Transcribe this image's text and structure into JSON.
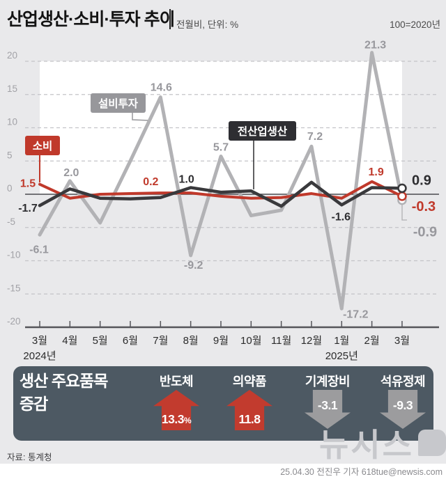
{
  "header": {
    "title": "산업생산·소비·투자 추이",
    "subtitle": "전월비, 단위: %",
    "base_note": "100=2020년"
  },
  "chart_data": {
    "type": "line",
    "title": "산업생산·소비·투자 추이",
    "unit_note": "전월비, 단위: %",
    "ylim": [
      -20,
      20
    ],
    "yticks": [
      20,
      15,
      10,
      5,
      0,
      -5,
      -10,
      -15,
      -20
    ],
    "grid": true,
    "categories": [
      "3월",
      "4월",
      "5월",
      "6월",
      "7월",
      "8월",
      "9월",
      "10월",
      "11월",
      "12월",
      "1월",
      "2월",
      "3월"
    ],
    "year_labels": [
      {
        "index": 0,
        "text": "2024년"
      },
      {
        "index": 10,
        "text": "2025년"
      }
    ],
    "series": [
      {
        "name": "설비투자",
        "color": "#b2b2b5",
        "label_color": "#98989d",
        "values": [
          -6.1,
          2.0,
          -4.3,
          5.0,
          14.6,
          -9.2,
          5.7,
          -3.2,
          -2.4,
          7.2,
          -17.2,
          21.3,
          -0.9
        ],
        "point_labels": [
          {
            "i": 0,
            "t": "-6.1",
            "dx": -1,
            "dy": 26
          },
          {
            "i": 1,
            "t": "2.0",
            "dx": 2,
            "dy": -7
          },
          {
            "i": 4,
            "t": "14.6",
            "dx": 1,
            "dy": -9
          },
          {
            "i": 5,
            "t": "-9.2",
            "dx": 4,
            "dy": 19
          },
          {
            "i": 6,
            "t": "5.7",
            "dx": 0,
            "dy": -8
          },
          {
            "i": 9,
            "t": "7.2",
            "dx": 5,
            "dy": -9
          },
          {
            "i": 10,
            "t": "-17.2",
            "dx": 20,
            "dy": 13
          },
          {
            "i": 11,
            "t": "21.3",
            "dx": 5,
            "dy": -6
          },
          {
            "i": 12,
            "t": "-0.9",
            "dx": 33,
            "dy": 52,
            "big": true
          }
        ]
      },
      {
        "name": "소비",
        "color": "#c0392b",
        "label_color": "#c0392b",
        "values": [
          1.5,
          -0.6,
          0.0,
          0.1,
          0.2,
          0.2,
          -0.3,
          -0.6,
          -0.5,
          0.1,
          -0.6,
          1.9,
          -0.3
        ],
        "point_labels": [
          {
            "i": 0,
            "t": "1.5",
            "dx": -17,
            "dy": 4
          },
          {
            "i": 4,
            "t": "0.2",
            "dx": -14,
            "dy": -11
          },
          {
            "i": 11,
            "t": "1.9",
            "dx": 6,
            "dy": -9
          },
          {
            "i": 12,
            "t": "-0.3",
            "dx": 31,
            "dy": 21,
            "big": true
          }
        ]
      },
      {
        "name": "전산업생산",
        "color": "#39393c",
        "label_color": "#2d2d30",
        "values": [
          -1.7,
          0.8,
          -0.6,
          -0.7,
          -0.5,
          1.0,
          0.3,
          0.5,
          -1.8,
          1.8,
          -1.6,
          1.0,
          0.9
        ],
        "point_labels": [
          {
            "i": 0,
            "t": "-1.7",
            "dx": -17,
            "dy": 9
          },
          {
            "i": 5,
            "t": "1.0",
            "dx": -6,
            "dy": -7
          },
          {
            "i": 10,
            "t": "-1.6",
            "dx": -1,
            "dy": 22
          },
          {
            "i": 12,
            "t": "0.9",
            "dx": 28,
            "dy": -5,
            "big": true
          }
        ]
      }
    ]
  },
  "panel": {
    "title_line1": "생산 주요품목",
    "title_line2": "증감",
    "up_color": "#c23b2e",
    "down_color": "#9c9c9e",
    "items": [
      {
        "label": "반도체",
        "value": "13.3",
        "suffix": "%",
        "direction": "up"
      },
      {
        "label": "의약품",
        "value": "11.8",
        "suffix": "",
        "direction": "up"
      },
      {
        "label": "기계장비",
        "value": "-3.1",
        "suffix": "",
        "direction": "down"
      },
      {
        "label": "석유정제",
        "value": "-9.3",
        "suffix": "",
        "direction": "down"
      }
    ]
  },
  "footer": {
    "source": "자료: 통계청",
    "watermark": "뉴시스",
    "credit": "25.04.30 전진우 기자 618tue@newsis.com"
  }
}
